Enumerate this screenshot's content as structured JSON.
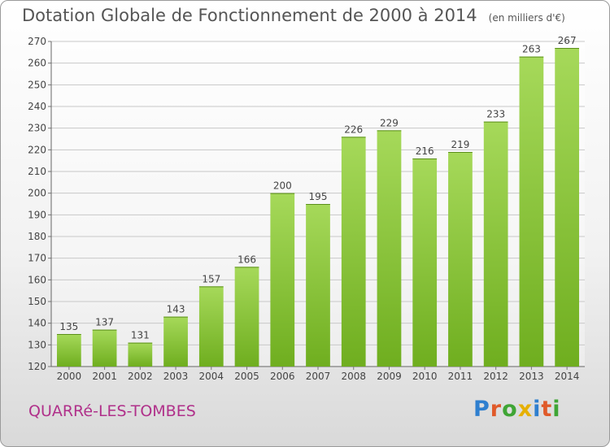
{
  "header": {
    "title": "Dotation Globale de Fonctionnement de 2000 à 2014",
    "subtitle": "(en milliers d'€)"
  },
  "footer": {
    "commune": "QUARRé-LES-TOMBES",
    "brand": "Proxiti",
    "brand_colors": [
      "#2f7fcf",
      "#e05a2a",
      "#3fa535",
      "#e6b000",
      "#2f7fcf",
      "#e05a2a",
      "#3fa535"
    ]
  },
  "colors": {
    "bar_light": "#a6d95a",
    "bar_dark": "#6fae1f",
    "grid": "#c8c8c8",
    "axis_text": "#444444"
  },
  "chart_data": {
    "type": "bar",
    "title": "Dotation Globale de Fonctionnement de 2000 à 2014",
    "subtitle": "(en milliers d'€)",
    "categories": [
      "2000",
      "2001",
      "2002",
      "2003",
      "2004",
      "2005",
      "2006",
      "2007",
      "2008",
      "2009",
      "2010",
      "2011",
      "2012",
      "2013",
      "2014"
    ],
    "values": [
      135,
      137,
      131,
      143,
      157,
      166,
      200,
      195,
      226,
      229,
      216,
      219,
      233,
      263,
      267
    ],
    "ylim": [
      120,
      270
    ],
    "yticks": [
      120,
      130,
      140,
      150,
      160,
      170,
      180,
      190,
      200,
      210,
      220,
      230,
      240,
      250,
      260,
      270
    ],
    "grid": true
  }
}
